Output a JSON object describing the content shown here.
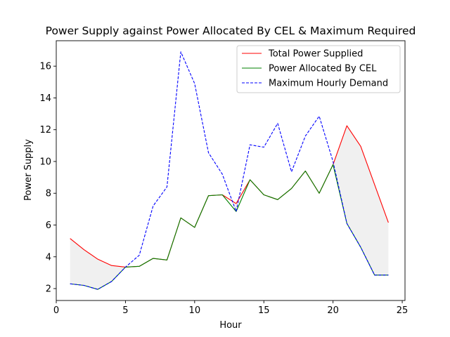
{
  "chart_data": {
    "type": "line",
    "title": "Power Supply against Power Allocated By CEL & Maximum Required",
    "xlabel": "Hour",
    "ylabel": "Power Supply",
    "xlim": [
      0,
      25.2
    ],
    "ylim": [
      1.25,
      17.6
    ],
    "xticks": [
      0,
      5,
      10,
      15,
      20,
      25
    ],
    "yticks": [
      2,
      4,
      6,
      8,
      10,
      12,
      14,
      16
    ],
    "grid": false,
    "legend_position": "top-right",
    "x": [
      1,
      2,
      3,
      4,
      5,
      6,
      7,
      8,
      9,
      10,
      11,
      12,
      13,
      14,
      15,
      16,
      17,
      18,
      19,
      20,
      21,
      22,
      23,
      24
    ],
    "series": [
      {
        "name": "Total Power Supplied",
        "color": "#ff0000",
        "style": "solid",
        "values": [
          5.15,
          4.45,
          3.85,
          3.45,
          3.35,
          3.4,
          3.9,
          3.8,
          6.45,
          5.85,
          7.85,
          7.9,
          7.35,
          8.85,
          7.9,
          7.6,
          8.3,
          9.4,
          8.0,
          9.8,
          12.25,
          10.95,
          8.55,
          6.15
        ]
      },
      {
        "name": "Power Allocated By CEL",
        "color": "#008000",
        "style": "solid",
        "values": [
          2.3,
          2.2,
          1.95,
          2.45,
          3.35,
          3.4,
          3.9,
          3.8,
          6.45,
          5.85,
          7.85,
          7.9,
          6.85,
          8.85,
          7.9,
          7.6,
          8.3,
          9.4,
          8.0,
          9.8,
          6.1,
          4.6,
          2.85,
          2.85
        ]
      },
      {
        "name": "Maximum Hourly Demand",
        "color": "#0000ff",
        "style": "dashed",
        "values": [
          2.3,
          2.2,
          1.95,
          2.45,
          3.35,
          4.1,
          7.2,
          8.4,
          16.9,
          14.9,
          10.55,
          9.2,
          6.85,
          11.05,
          10.9,
          12.4,
          9.35,
          11.6,
          12.85,
          10.0,
          6.1,
          4.6,
          2.85,
          2.85
        ]
      }
    ],
    "fill_between": {
      "upper": "Total Power Supplied",
      "lower": "Maximum Hourly Demand",
      "where": "upper > lower",
      "color": "#d3d3d3"
    }
  }
}
